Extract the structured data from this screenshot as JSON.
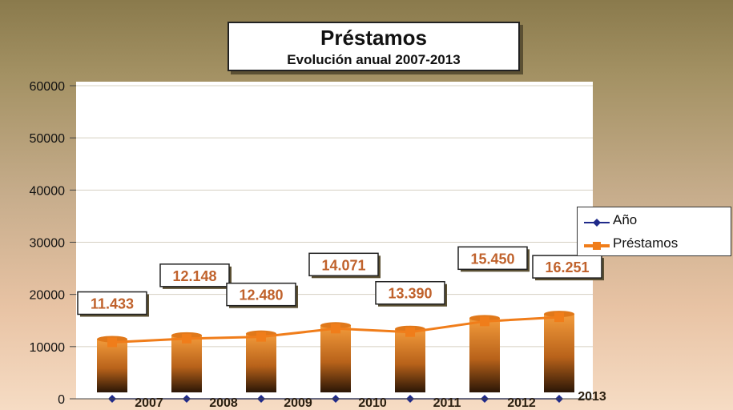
{
  "chart_data": {
    "type": "bar",
    "title": "Préstamos",
    "subtitle": "Evolución anual 2007-2013",
    "categories": [
      "2007",
      "2008",
      "2009",
      "2010",
      "2011",
      "2012",
      "2013"
    ],
    "series": [
      {
        "name": "Año",
        "type": "line",
        "values": [
          0,
          0,
          0,
          0,
          0,
          0,
          0
        ],
        "color": "#1f2a8a"
      },
      {
        "name": "Préstamos",
        "type": "bar+line",
        "values": [
          11433,
          12148,
          12480,
          14071,
          13390,
          15450,
          16251
        ],
        "color": "#f07d1a"
      }
    ],
    "data_labels": [
      "11.433",
      "12.148",
      "12.480",
      "14.071",
      "13.390",
      "15.450",
      "16.251"
    ],
    "y_ticks": [
      "0",
      "10000",
      "20000",
      "30000",
      "40000",
      "50000",
      "60000"
    ],
    "ylim": [
      0,
      60000
    ],
    "grid": true,
    "legend_position": "right",
    "colors": {
      "bar_top": "#f39b3b",
      "bar_bottom": "#2b1606",
      "line": "#f07d1a",
      "label_text": "#c0622c"
    }
  }
}
